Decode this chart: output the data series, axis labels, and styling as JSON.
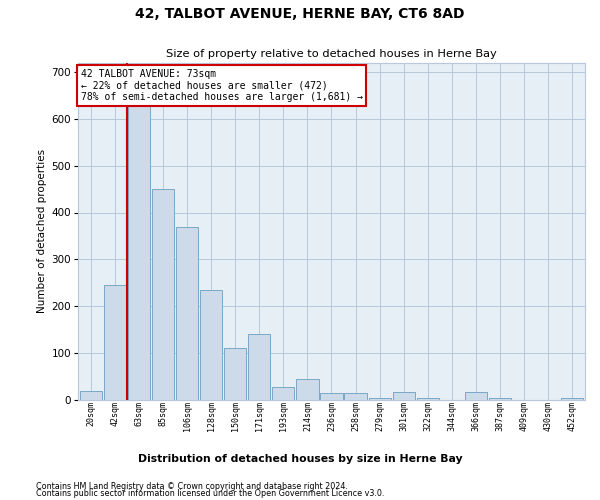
{
  "title": "42, TALBOT AVENUE, HERNE BAY, CT6 8AD",
  "subtitle": "Size of property relative to detached houses in Herne Bay",
  "xlabel": "Distribution of detached houses by size in Herne Bay",
  "ylabel": "Number of detached properties",
  "footer_line1": "Contains HM Land Registry data © Crown copyright and database right 2024.",
  "footer_line2": "Contains public sector information licensed under the Open Government Licence v3.0.",
  "bar_color": "#ccdaea",
  "bar_edge_color": "#6a9ec0",
  "grid_color": "#b8c8dc",
  "background_color": "#e6eef6",
  "vline_color": "#cc0000",
  "annotation_text": "42 TALBOT AVENUE: 73sqm\n← 22% of detached houses are smaller (472)\n78% of semi-detached houses are larger (1,681) →",
  "annotation_box_edgecolor": "#cc0000",
  "categories": [
    "20sqm",
    "42sqm",
    "63sqm",
    "85sqm",
    "106sqm",
    "128sqm",
    "150sqm",
    "171sqm",
    "193sqm",
    "214sqm",
    "236sqm",
    "258sqm",
    "279sqm",
    "301sqm",
    "322sqm",
    "344sqm",
    "366sqm",
    "387sqm",
    "409sqm",
    "430sqm",
    "452sqm"
  ],
  "values": [
    20,
    245,
    660,
    450,
    370,
    235,
    110,
    140,
    28,
    45,
    14,
    14,
    5,
    18,
    5,
    0,
    18,
    4,
    0,
    0,
    4
  ],
  "n_bars": 21,
  "ylim": [
    0,
    720
  ],
  "yticks": [
    0,
    100,
    200,
    300,
    400,
    500,
    600,
    700
  ],
  "vline_bar_index": 2
}
